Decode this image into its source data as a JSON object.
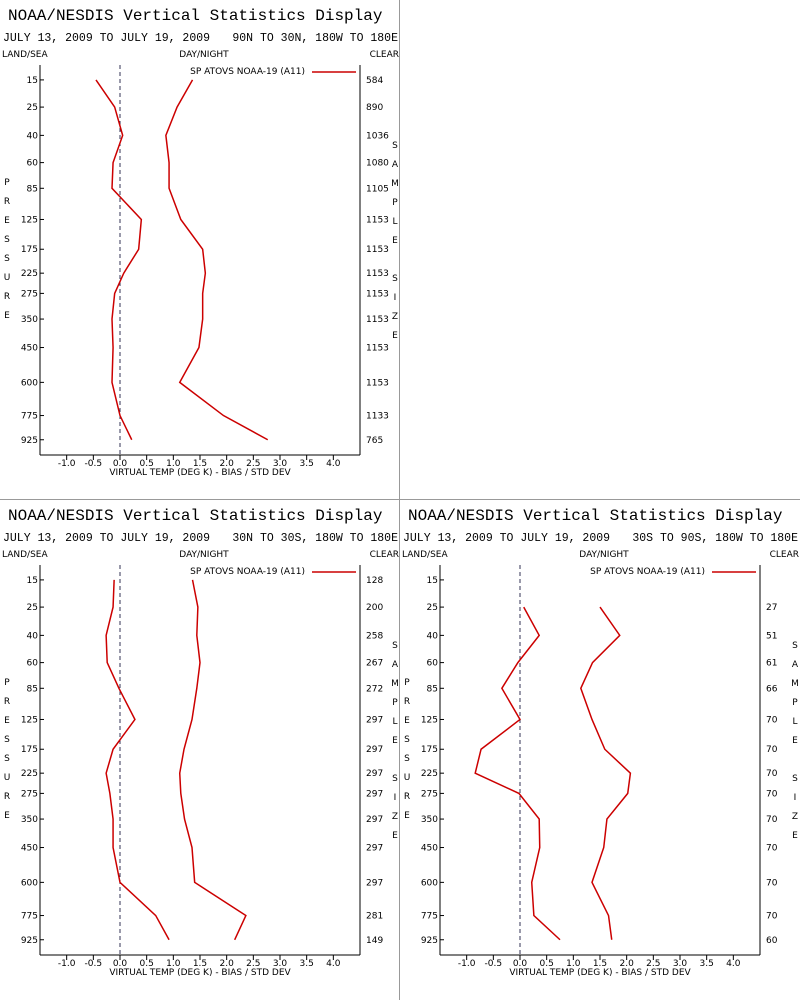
{
  "chart_data": [
    {
      "type": "line",
      "title": "NOAA/NESDIS Vertical Statistics Display",
      "subtitle": "JULY 13, 2009 TO JULY 19, 2009",
      "region": "90N TO 30N, 180W TO 180E",
      "land_sea": "LAND/SEA",
      "day_night": "DAY/NIGHT",
      "clear": "CLEAR",
      "y_label": "PRESSURE",
      "y2_label": "SAMPLE SIZE",
      "x_label": "VIRTUAL TEMP (DEG K) - BIAS / STD DEV",
      "y": [
        15,
        25,
        40,
        60,
        85,
        125,
        175,
        225,
        275,
        350,
        450,
        600,
        775,
        925
      ],
      "ylim": [
        11,
        1030
      ],
      "yticks": [
        15,
        25,
        40,
        60,
        85,
        125,
        175,
        225,
        275,
        350,
        450,
        600,
        775,
        925
      ],
      "xlim": [
        -1.5,
        4.5
      ],
      "xticks": [
        {
          "value": -1,
          "label": "-1.0"
        },
        -0.5,
        {
          "value": 0,
          "label": "0.0"
        },
        0.5,
        {
          "value": 1,
          "label": "1.0"
        },
        1.5,
        {
          "value": 2,
          "label": "2.0"
        },
        2.5,
        {
          "value": 3,
          "label": "3.0"
        },
        3.5,
        {
          "value": 4,
          "label": "4.0"
        }
      ],
      "series": [
        {
          "name": "SP ATOVS NOAA-19 (A11)",
          "color": "#cc0000",
          "bias": [
            -0.45,
            -0.1,
            0.05,
            -0.13,
            -0.15,
            0.4,
            0.35,
            0.07,
            -0.1,
            -0.15,
            -0.13,
            -0.15,
            0.0,
            0.22
          ],
          "std_dev": [
            1.36,
            1.07,
            0.86,
            0.92,
            0.92,
            1.14,
            1.55,
            1.6,
            1.55,
            1.55,
            1.48,
            1.12,
            1.94,
            2.77
          ]
        }
      ],
      "sample_size": [
        584,
        890,
        1036,
        1080,
        1105,
        1153,
        1153,
        1153,
        1153,
        1153,
        1153,
        1153,
        1133,
        765
      ]
    },
    {
      "type": "line",
      "title": "NOAA/NESDIS Vertical Statistics Display",
      "subtitle": "JULY 13, 2009 TO JULY 19, 2009",
      "region": "30N TO 30S, 180W TO 180E",
      "land_sea": "LAND/SEA",
      "day_night": "DAY/NIGHT",
      "clear": "CLEAR",
      "y_label": "PRESSURE",
      "y2_label": "SAMPLE SIZE",
      "x_label": "VIRTUAL TEMP (DEG K) - BIAS / STD DEV",
      "y": [
        15,
        25,
        40,
        60,
        85,
        125,
        175,
        225,
        275,
        350,
        450,
        600,
        775,
        925
      ],
      "ylim": [
        11,
        1030
      ],
      "yticks": [
        15,
        25,
        40,
        60,
        85,
        125,
        175,
        225,
        275,
        350,
        450,
        600,
        775,
        925
      ],
      "xlim": [
        -1.5,
        4.5
      ],
      "xticks": [
        {
          "value": -1,
          "label": "-1.0"
        },
        -0.5,
        {
          "value": 0,
          "label": "0.0"
        },
        0.5,
        {
          "value": 1,
          "label": "1.0"
        },
        1.5,
        {
          "value": 2,
          "label": "2.0"
        },
        2.5,
        {
          "value": 3,
          "label": "3.0"
        },
        3.5,
        {
          "value": 4,
          "label": "4.0"
        }
      ],
      "series": [
        {
          "name": "SP ATOVS NOAA-19 (A11)",
          "color": "#cc0000",
          "bias": [
            -0.11,
            -0.13,
            -0.26,
            -0.24,
            -0.02,
            0.28,
            -0.13,
            -0.26,
            -0.19,
            -0.13,
            -0.13,
            0.0,
            0.67,
            0.92
          ],
          "std_dev": [
            1.36,
            1.46,
            1.44,
            1.5,
            1.44,
            1.35,
            1.2,
            1.12,
            1.14,
            1.21,
            1.35,
            1.4,
            2.36,
            2.15
          ]
        }
      ],
      "sample_size": [
        128,
        200,
        258,
        267,
        272,
        297,
        297,
        297,
        297,
        297,
        297,
        297,
        281,
        149
      ]
    },
    {
      "type": "line",
      "title": "NOAA/NESDIS Vertical Statistics Display",
      "subtitle": "JULY 13, 2009 TO JULY 19, 2009",
      "region": "30S TO 90S, 180W TO 180E",
      "land_sea": "LAND/SEA",
      "day_night": "DAY/NIGHT",
      "clear": "CLEAR",
      "y_label": "PRESSURE",
      "y2_label": "SAMPLE SIZE",
      "x_label": "VIRTUAL TEMP (DEG K) - BIAS / STD DEV",
      "y": [
        15,
        25,
        40,
        60,
        85,
        125,
        175,
        225,
        275,
        350,
        450,
        600,
        775,
        925
      ],
      "ylim": [
        11,
        1030
      ],
      "yticks": [
        15,
        25,
        40,
        60,
        85,
        125,
        175,
        225,
        275,
        350,
        450,
        600,
        775,
        925
      ],
      "xlim": [
        -1.5,
        4.5
      ],
      "xticks": [
        {
          "value": -1,
          "label": "-1.0"
        },
        -0.5,
        {
          "value": 0,
          "label": "0.0"
        },
        0.5,
        {
          "value": 1,
          "label": "1.0"
        },
        1.5,
        {
          "value": 2,
          "label": "2.0"
        },
        2.5,
        {
          "value": 3,
          "label": "3.0"
        },
        3.5,
        {
          "value": 4,
          "label": "4.0"
        }
      ],
      "series": [
        {
          "name": "SP ATOVS NOAA-19 (A11)",
          "color": "#cc0000",
          "bias": [
            null,
            0.07,
            0.36,
            -0.04,
            -0.34,
            0.0,
            -0.73,
            -0.84,
            -0.02,
            0.36,
            0.37,
            0.22,
            0.26,
            0.75
          ],
          "std_dev": [
            null,
            1.5,
            1.87,
            1.36,
            1.14,
            1.35,
            1.59,
            2.07,
            2.02,
            1.63,
            1.57,
            1.35,
            1.66,
            1.72
          ]
        }
      ],
      "sample_size": [
        null,
        27,
        51,
        61,
        66,
        70,
        70,
        70,
        70,
        70,
        70,
        70,
        70,
        60
      ]
    }
  ]
}
